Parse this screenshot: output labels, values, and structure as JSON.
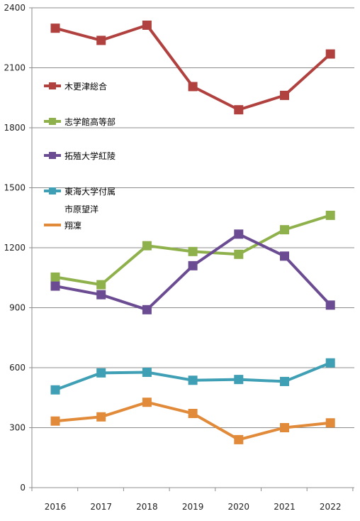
{
  "chart_data": {
    "type": "line",
    "x": [
      "2016",
      "2017",
      "2018",
      "2019",
      "2020",
      "2021",
      "2022"
    ],
    "ylim": [
      0,
      2400
    ],
    "yticks": [
      0,
      300,
      600,
      900,
      1200,
      1500,
      1800,
      2100,
      2400
    ],
    "grid": true,
    "legend_position": "left-inside",
    "series": [
      {
        "name": "木更津総合",
        "color": "#b0413e",
        "values": [
          2298,
          2237,
          2313,
          2006,
          1890,
          1962,
          2169
        ]
      },
      {
        "name": "志学館高等部",
        "color": "#8fb14c",
        "values": [
          1053,
          1015,
          1210,
          1181,
          1167,
          1290,
          1362
        ]
      },
      {
        "name": "拓殖大学紅陵",
        "color": "#6b4c92",
        "values": [
          1008,
          965,
          890,
          1110,
          1268,
          1158,
          913
        ]
      },
      {
        "name": "東海大学付属\n市原望洋",
        "color": "#3f9fb4",
        "values": [
          489,
          574,
          577,
          537,
          541,
          531,
          624
        ]
      },
      {
        "name": "翔凜",
        "color": "#e08a3a",
        "values": [
          333,
          354,
          427,
          371,
          240,
          300,
          324
        ]
      }
    ]
  }
}
